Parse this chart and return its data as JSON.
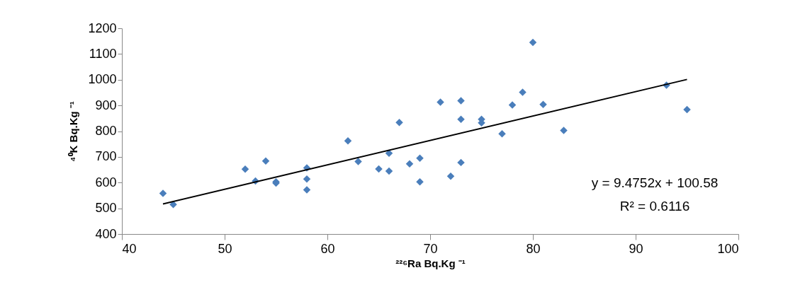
{
  "chart_data": {
    "type": "scatter",
    "xlabel": "²²⁶Ra Bq.Kg ⁻¹",
    "ylabel": "⁴⁰K Bq.Kg ⁻¹",
    "xlim": [
      40,
      100
    ],
    "xticks": [
      40,
      50,
      60,
      70,
      80,
      90,
      100
    ],
    "ylim": [
      400,
      1200
    ],
    "yticks": [
      400,
      500,
      600,
      700,
      800,
      900,
      1000,
      1100,
      1200
    ],
    "grid": false,
    "series": [
      {
        "color": "#4a7ebb",
        "marker": "diamond",
        "x": [
          44,
          45,
          52,
          53,
          54,
          55,
          55,
          58,
          58,
          58,
          62,
          63,
          65,
          66,
          66,
          67,
          68,
          69,
          69,
          71,
          72,
          73,
          73,
          73,
          75,
          75,
          77,
          78,
          79,
          80,
          81,
          83,
          93,
          95
        ],
        "values": [
          558,
          515,
          652,
          606,
          684,
          603,
          598,
          657,
          614,
          572,
          762,
          682,
          653,
          714,
          645,
          834,
          673,
          695,
          603,
          913,
          625,
          918,
          846,
          678,
          846,
          832,
          790,
          902,
          951,
          1145,
          904,
          803,
          979,
          884
        ]
      },
      {
        "type": "line",
        "color": "#000000",
        "x": [
          44,
          95
        ],
        "values": [
          517,
          1001
        ]
      }
    ],
    "annotations": [
      "y = 9.4752x + 100.58",
      "R² = 0.6116"
    ]
  }
}
